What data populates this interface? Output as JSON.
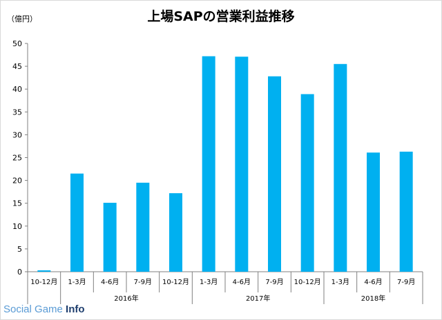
{
  "chart_data": {
    "type": "bar",
    "title": "上場SAPの営業利益推移",
    "unit_label": "（億円）",
    "categories": [
      "10-12月",
      "1-3月",
      "4-6月",
      "7-9月",
      "10-12月",
      "1-3月",
      "4-6月",
      "7-9月",
      "10-12月",
      "1-3月",
      "4-6月",
      "7-9月"
    ],
    "values": [
      0.3,
      21.5,
      15.1,
      19.5,
      17.2,
      47.2,
      47.1,
      42.8,
      38.9,
      45.5,
      26.1,
      26.3
    ],
    "year_groups": [
      {
        "label": "",
        "start": 0,
        "count": 1
      },
      {
        "label": "2016年",
        "start": 1,
        "count": 4
      },
      {
        "label": "2017年",
        "start": 5,
        "count": 4
      },
      {
        "label": "2018年",
        "start": 9,
        "count": 3
      }
    ],
    "ylim": [
      0,
      50
    ],
    "yticks": [
      0,
      5,
      10,
      15,
      20,
      25,
      30,
      35,
      40,
      45,
      50
    ],
    "bar_color": "#00b0f0",
    "legend": "none",
    "grid": false
  },
  "watermark": {
    "part1": "Social Game ",
    "part2": "Info"
  }
}
